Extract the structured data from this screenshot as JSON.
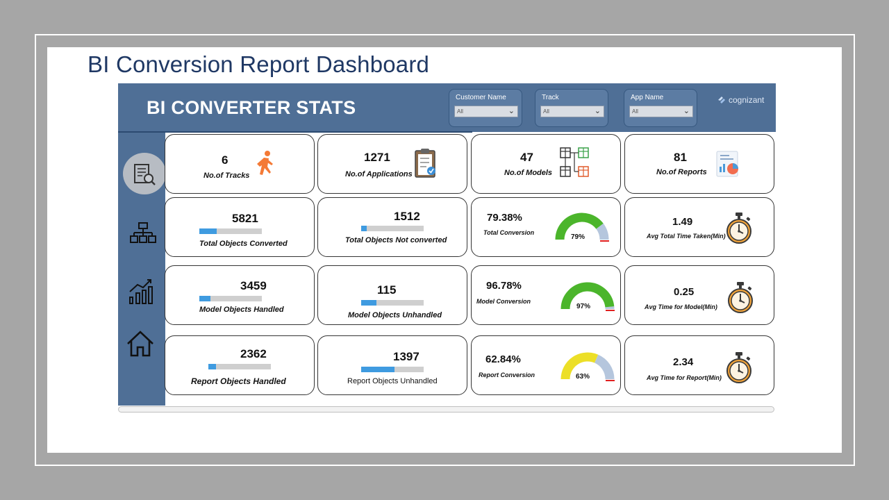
{
  "slide": {
    "title": "BI Conversion Report Dashboard"
  },
  "header": {
    "title": "BI CONVERTER STATS",
    "brand": "cognizant",
    "filters": [
      {
        "label": "Customer Name",
        "value": "All"
      },
      {
        "label": "Track",
        "value": "All"
      },
      {
        "label": "App Name",
        "value": "All"
      }
    ]
  },
  "sidebar": {
    "items": [
      {
        "icon": "report-search-icon",
        "active": true
      },
      {
        "icon": "hierarchy-icon",
        "active": false
      },
      {
        "icon": "bar-chart-icon",
        "active": false
      },
      {
        "icon": "home-icon",
        "active": false
      }
    ]
  },
  "kpis": {
    "tracks": {
      "value": "6",
      "label": "No.of Tracks"
    },
    "applications": {
      "value": "1271",
      "label": "No.of Applications"
    },
    "models": {
      "value": "47",
      "label": "No.of Models"
    },
    "reports": {
      "value": "81",
      "label": "No.of Reports"
    }
  },
  "objects": {
    "total_converted": {
      "value": "5821",
      "label": "Total Objects Converted",
      "fill": 0.28
    },
    "total_not_converted": {
      "value": "1512",
      "label": "Total Objects Not converted",
      "fill": 0.09
    },
    "model_handled": {
      "value": "3459",
      "label": "Model Objects Handled",
      "fill": 0.18
    },
    "model_unhandled": {
      "value": "115",
      "label": "Model Objects Unhandled",
      "fill": 0.24
    },
    "report_handled": {
      "value": "2362",
      "label": "Report Objects Handled",
      "fill": 0.12
    },
    "report_unhandled": {
      "value": "1397",
      "label": "Report Objects Unhandled",
      "fill": 0.53
    }
  },
  "conversion": {
    "total": {
      "value": "79.38%",
      "label": "Total Conversion",
      "gauge_text": "79%",
      "percent": 79.38,
      "color": "#4bb52b"
    },
    "model": {
      "value": "96.78%",
      "label": "Model Conversion",
      "gauge_text": "97%",
      "percent": 96.78,
      "color": "#4bb52b"
    },
    "report": {
      "value": "62.84%",
      "label": "Report Conversion",
      "gauge_text": "63%",
      "percent": 62.84,
      "color": "#ecdf27"
    }
  },
  "times": {
    "total": {
      "value": "1.49",
      "label": "Avg Total Time Taken(Min)"
    },
    "model": {
      "value": "0.25",
      "label": "Avg Time for Model(Min)"
    },
    "report": {
      "value": "2.34",
      "label": "Avg Time for Report(Min)"
    }
  },
  "colors": {
    "header": "#4f6f96",
    "title": "#1f3864",
    "bar": "#3f9be0",
    "gauge_rest": "#b5c6dd",
    "target": "#e02020"
  }
}
